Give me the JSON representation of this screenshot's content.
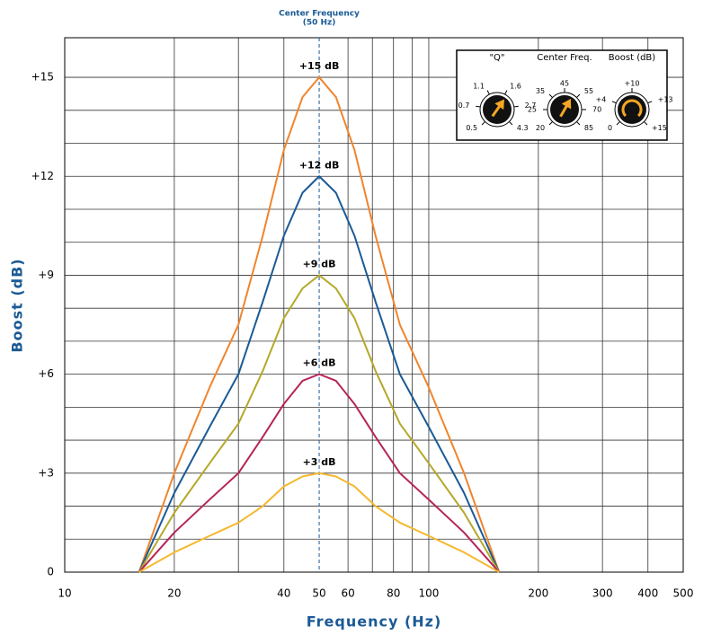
{
  "chart_data": {
    "type": "line",
    "x_scale": "log",
    "xlabel": "Frequency (Hz)",
    "ylabel": "Boost (dB)",
    "xlim": [
      10,
      500
    ],
    "xticks": [
      10,
      20,
      40,
      50,
      60,
      80,
      100,
      200,
      300,
      400,
      500
    ],
    "x_minor_ticks": [
      30,
      70,
      90
    ],
    "ylim": [
      0,
      16.2
    ],
    "yticks": [
      0,
      {
        "value": 3,
        "label": "+3"
      },
      {
        "value": 6,
        "label": "+6"
      },
      {
        "value": 9,
        "label": "+9"
      },
      {
        "value": 12,
        "label": "+12"
      },
      {
        "value": 15,
        "label": "+15"
      }
    ],
    "y_minor_ticks": [
      1,
      2,
      4,
      5,
      7,
      8,
      10,
      11,
      13,
      14
    ],
    "grid": true,
    "annotation": {
      "lines": [
        "Center Frequency",
        "(50 Hz)"
      ],
      "x": 50
    },
    "x": [
      16,
      20,
      25,
      30,
      35,
      40,
      45,
      50,
      55.6,
      62.5,
      71.4,
      83.3,
      100,
      125,
      156
    ],
    "series": [
      {
        "name": "+15 dB",
        "color": "#f0852d",
        "values": [
          0,
          3,
          5.6,
          7.5,
          10.2,
          12.8,
          14.4,
          15,
          14.4,
          12.8,
          10.2,
          7.5,
          5.6,
          3,
          0
        ]
      },
      {
        "name": "+12 dB",
        "color": "#1a5a96",
        "values": [
          0,
          2.4,
          4.4,
          6,
          8.2,
          10.2,
          11.5,
          12,
          11.5,
          10.2,
          8.2,
          6,
          4.4,
          2.4,
          0
        ]
      },
      {
        "name": "+9 dB",
        "color": "#b5a82a",
        "values": [
          0,
          1.8,
          3.3,
          4.5,
          6.1,
          7.7,
          8.6,
          9,
          8.6,
          7.7,
          6.1,
          4.5,
          3.3,
          1.8,
          0
        ]
      },
      {
        "name": "+6 dB",
        "color": "#b5245a",
        "values": [
          0,
          1.2,
          2.2,
          3,
          4.1,
          5.1,
          5.8,
          6,
          5.8,
          5.1,
          4.1,
          3,
          2.2,
          1.2,
          0
        ]
      },
      {
        "name": "+3 dB",
        "color": "#f5b82e",
        "values": [
          0,
          0.6,
          1.1,
          1.5,
          2,
          2.6,
          2.9,
          3,
          2.9,
          2.6,
          2,
          1.5,
          1.1,
          0.6,
          0
        ]
      }
    ],
    "knobs": [
      {
        "title": "\"Q\"",
        "scale": [
          "0.5",
          "0.7",
          "1.1",
          "1.6",
          "2.7",
          "4.3"
        ]
      },
      {
        "title": "Center Freq.",
        "scale": [
          "20",
          "25",
          "35",
          "45",
          "55",
          "70",
          "85"
        ]
      },
      {
        "title": "Boost (dB)",
        "scale": [
          "0",
          "+4",
          "+10",
          "+13",
          "+15"
        ]
      }
    ]
  }
}
